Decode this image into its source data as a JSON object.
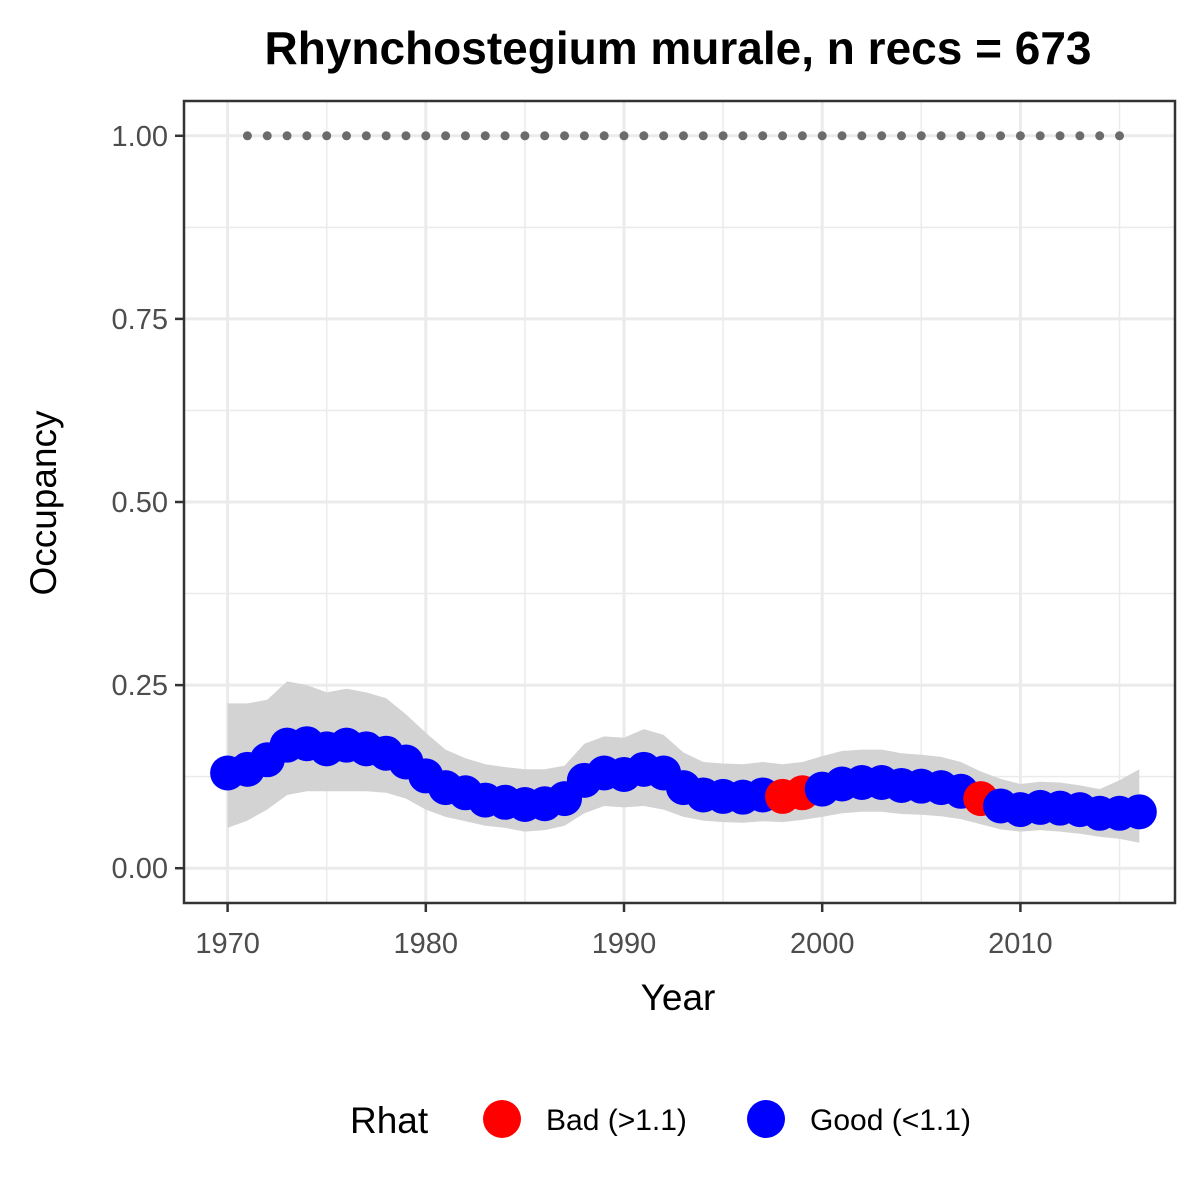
{
  "chart_data": {
    "type": "line",
    "title": "Rhynchostegium murale, n recs = 673",
    "xlabel": "Year",
    "ylabel": "Occupancy",
    "xlim": [
      1967.8,
      2017.8
    ],
    "ylim": [
      -0.0475,
      1.0475
    ],
    "x_ticks": [
      1970,
      1980,
      1990,
      2000,
      2010
    ],
    "x_tick_labels": [
      "1970",
      "1980",
      "1990",
      "2000",
      "2010"
    ],
    "x_minor_ticks": [
      1975,
      1985,
      1995,
      2005,
      2015
    ],
    "y_ticks": [
      0,
      0.25,
      0.5,
      0.75,
      1.0
    ],
    "y_tick_labels": [
      "0.00",
      "0.25",
      "0.50",
      "0.75",
      "1.00"
    ],
    "y_minor_ticks": [
      0.125,
      0.375,
      0.625,
      0.875
    ],
    "grid": true,
    "legend": {
      "title": "Rhat",
      "position": "bottom",
      "entries": [
        {
          "label": "Bad (>1.1)",
          "color": "#ff0000"
        },
        {
          "label": "Good (<1.1)",
          "color": "#0000ff"
        }
      ]
    },
    "colors": {
      "bad": "#ff0000",
      "good": "#0000ff",
      "ribbon": "#d3d3d3",
      "reference_dots": "#6b6b6b",
      "grid": "#ebebeb",
      "panel_border": "#333333"
    },
    "x": [
      1970,
      1971,
      1972,
      1973,
      1974,
      1975,
      1976,
      1977,
      1978,
      1979,
      1980,
      1981,
      1982,
      1983,
      1984,
      1985,
      1986,
      1987,
      1988,
      1989,
      1990,
      1991,
      1992,
      1993,
      1994,
      1995,
      1996,
      1997,
      1998,
      1999,
      2000,
      2001,
      2002,
      2003,
      2004,
      2005,
      2006,
      2007,
      2008,
      2009,
      2010,
      2011,
      2012,
      2013,
      2014,
      2015,
      2016
    ],
    "series": [
      {
        "values": [
          0.13,
          0.135,
          0.148,
          0.168,
          0.17,
          0.163,
          0.168,
          0.163,
          0.157,
          0.145,
          0.126,
          0.11,
          0.103,
          0.093,
          0.09,
          0.087,
          0.088,
          0.095,
          0.12,
          0.13,
          0.128,
          0.135,
          0.13,
          0.11,
          0.1,
          0.098,
          0.097,
          0.1,
          0.098,
          0.103,
          0.108,
          0.115,
          0.117,
          0.117,
          0.113,
          0.112,
          0.11,
          0.105,
          0.095,
          0.085,
          0.08,
          0.083,
          0.082,
          0.08,
          0.075,
          0.075,
          0.077
        ],
        "rhat": [
          "Good",
          "Good",
          "Good",
          "Good",
          "Good",
          "Good",
          "Good",
          "Good",
          "Good",
          "Good",
          "Good",
          "Good",
          "Good",
          "Good",
          "Good",
          "Good",
          "Good",
          "Good",
          "Good",
          "Good",
          "Good",
          "Good",
          "Good",
          "Good",
          "Good",
          "Good",
          "Good",
          "Good",
          "Bad",
          "Bad",
          "Good",
          "Good",
          "Good",
          "Good",
          "Good",
          "Good",
          "Good",
          "Good",
          "Bad",
          "Good",
          "Good",
          "Good",
          "Good",
          "Good",
          "Good",
          "Good",
          "Good"
        ],
        "lower": [
          0.055,
          0.065,
          0.08,
          0.1,
          0.105,
          0.105,
          0.105,
          0.105,
          0.103,
          0.095,
          0.08,
          0.07,
          0.064,
          0.058,
          0.055,
          0.05,
          0.052,
          0.058,
          0.075,
          0.085,
          0.083,
          0.085,
          0.08,
          0.07,
          0.065,
          0.063,
          0.062,
          0.064,
          0.063,
          0.066,
          0.07,
          0.075,
          0.077,
          0.077,
          0.074,
          0.073,
          0.071,
          0.067,
          0.06,
          0.053,
          0.05,
          0.052,
          0.05,
          0.047,
          0.043,
          0.04,
          0.035
        ],
        "upper": [
          0.225,
          0.225,
          0.23,
          0.255,
          0.25,
          0.24,
          0.245,
          0.24,
          0.232,
          0.21,
          0.185,
          0.162,
          0.15,
          0.142,
          0.138,
          0.135,
          0.135,
          0.14,
          0.17,
          0.18,
          0.178,
          0.19,
          0.182,
          0.158,
          0.145,
          0.143,
          0.142,
          0.145,
          0.142,
          0.145,
          0.153,
          0.16,
          0.162,
          0.162,
          0.157,
          0.155,
          0.152,
          0.145,
          0.132,
          0.122,
          0.115,
          0.118,
          0.117,
          0.113,
          0.108,
          0.12,
          0.135
        ]
      }
    ],
    "reference_line": {
      "y": 1.0,
      "x": [
        1971,
        1972,
        1973,
        1974,
        1975,
        1976,
        1977,
        1978,
        1979,
        1980,
        1981,
        1982,
        1983,
        1984,
        1985,
        1986,
        1987,
        1988,
        1989,
        1990,
        1991,
        1992,
        1993,
        1994,
        1995,
        1996,
        1997,
        1998,
        1999,
        2000,
        2001,
        2002,
        2003,
        2004,
        2005,
        2006,
        2007,
        2008,
        2009,
        2010,
        2011,
        2012,
        2013,
        2014,
        2015
      ]
    }
  }
}
